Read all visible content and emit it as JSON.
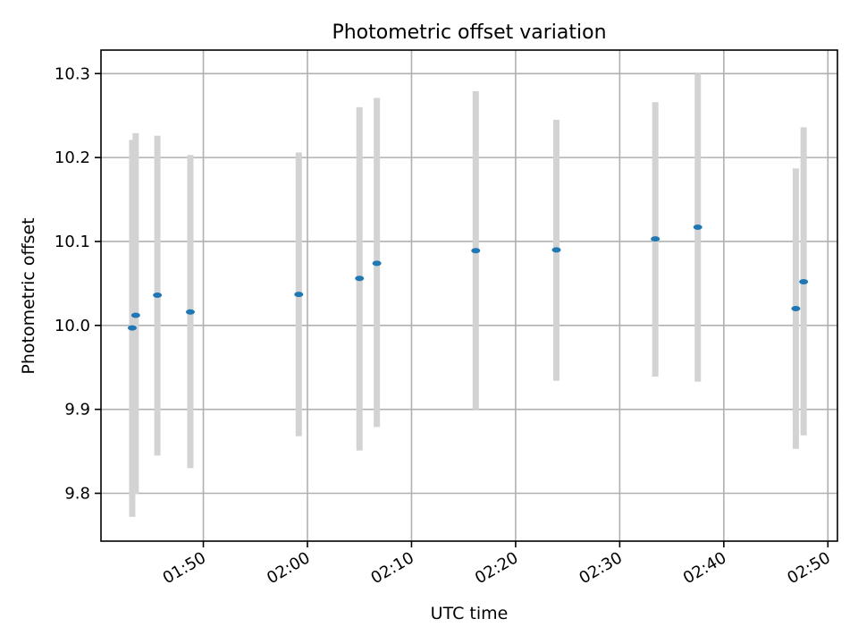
{
  "chart_data": {
    "type": "scatter",
    "title": "Photometric offset variation",
    "xlabel": "UTC time",
    "ylabel": "Photometric offset",
    "x_axis_type": "time",
    "xlim": [
      "01:40:10",
      "02:50:55"
    ],
    "ylim": [
      9.743,
      10.328
    ],
    "x_ticks": [
      "01:50",
      "02:00",
      "02:10",
      "02:20",
      "02:30",
      "02:40",
      "02:50"
    ],
    "y_ticks": [
      "9.8",
      "9.9",
      "10.0",
      "10.1",
      "10.2",
      "10.3"
    ],
    "grid": true,
    "marker_color": "#1f77b4",
    "errorbar_color": "#d3d3d3",
    "points": [
      {
        "x": "01:43:10",
        "y": 9.997,
        "ymin": 9.772,
        "ymax": 10.221
      },
      {
        "x": "01:43:30",
        "y": 10.012,
        "ymin": 9.799,
        "ymax": 10.229
      },
      {
        "x": "01:45:35",
        "y": 10.036,
        "ymin": 9.845,
        "ymax": 10.226
      },
      {
        "x": "01:48:45",
        "y": 10.016,
        "ymin": 9.83,
        "ymax": 10.203
      },
      {
        "x": "01:59:10",
        "y": 10.037,
        "ymin": 9.868,
        "ymax": 10.206
      },
      {
        "x": "02:05:00",
        "y": 10.056,
        "ymin": 9.851,
        "ymax": 10.26
      },
      {
        "x": "02:06:40",
        "y": 10.074,
        "ymin": 9.879,
        "ymax": 10.271
      },
      {
        "x": "02:16:10",
        "y": 10.089,
        "ymin": 9.9,
        "ymax": 10.279
      },
      {
        "x": "02:23:55",
        "y": 10.09,
        "ymin": 9.934,
        "ymax": 10.245
      },
      {
        "x": "02:33:25",
        "y": 10.103,
        "ymin": 9.939,
        "ymax": 10.266
      },
      {
        "x": "02:37:30",
        "y": 10.117,
        "ymin": 9.933,
        "ymax": 10.3
      },
      {
        "x": "02:46:55",
        "y": 10.02,
        "ymin": 9.853,
        "ymax": 10.187
      },
      {
        "x": "02:47:40",
        "y": 10.052,
        "ymin": 9.869,
        "ymax": 10.236
      }
    ]
  }
}
